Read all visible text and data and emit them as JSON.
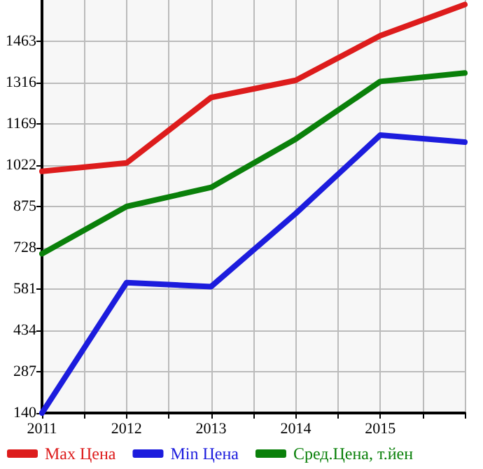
{
  "chart_data": {
    "type": "line",
    "x": [
      2011,
      2012,
      2013,
      2014,
      2015,
      2016
    ],
    "series": [
      {
        "name": "Max Цена",
        "color": "#dd1c1c",
        "values": [
          1000,
          1030,
          1263,
          1324,
          1483,
          1594
        ]
      },
      {
        "name": "Min Цена",
        "color": "#1c1cdd",
        "values": [
          140,
          604,
          590,
          850,
          1129,
          1104
        ]
      },
      {
        "name": "Сред.Цена, т.йен",
        "color": "#0a800a",
        "values": [
          707,
          875,
          943,
          1115,
          1320,
          1350
        ]
      }
    ],
    "xlim": [
      2011,
      2016
    ],
    "xticks": [
      2011,
      {
        "value": 2011.5,
        "label": null
      },
      2012,
      {
        "value": 2012.5,
        "label": null
      },
      2013,
      {
        "value": 2013.5,
        "label": null
      },
      2014,
      {
        "value": 2014.5,
        "label": null
      },
      2015,
      {
        "value": 2015.5,
        "label": null
      },
      {
        "value": 2016,
        "label": null
      }
    ],
    "ylim": [
      140,
      1610
    ],
    "yticks": [
      140,
      287,
      434,
      581,
      728,
      875,
      1022,
      1169,
      1316,
      1463
    ],
    "grid": true,
    "legend": "bottom",
    "marker": "none",
    "line_style": "solid"
  }
}
